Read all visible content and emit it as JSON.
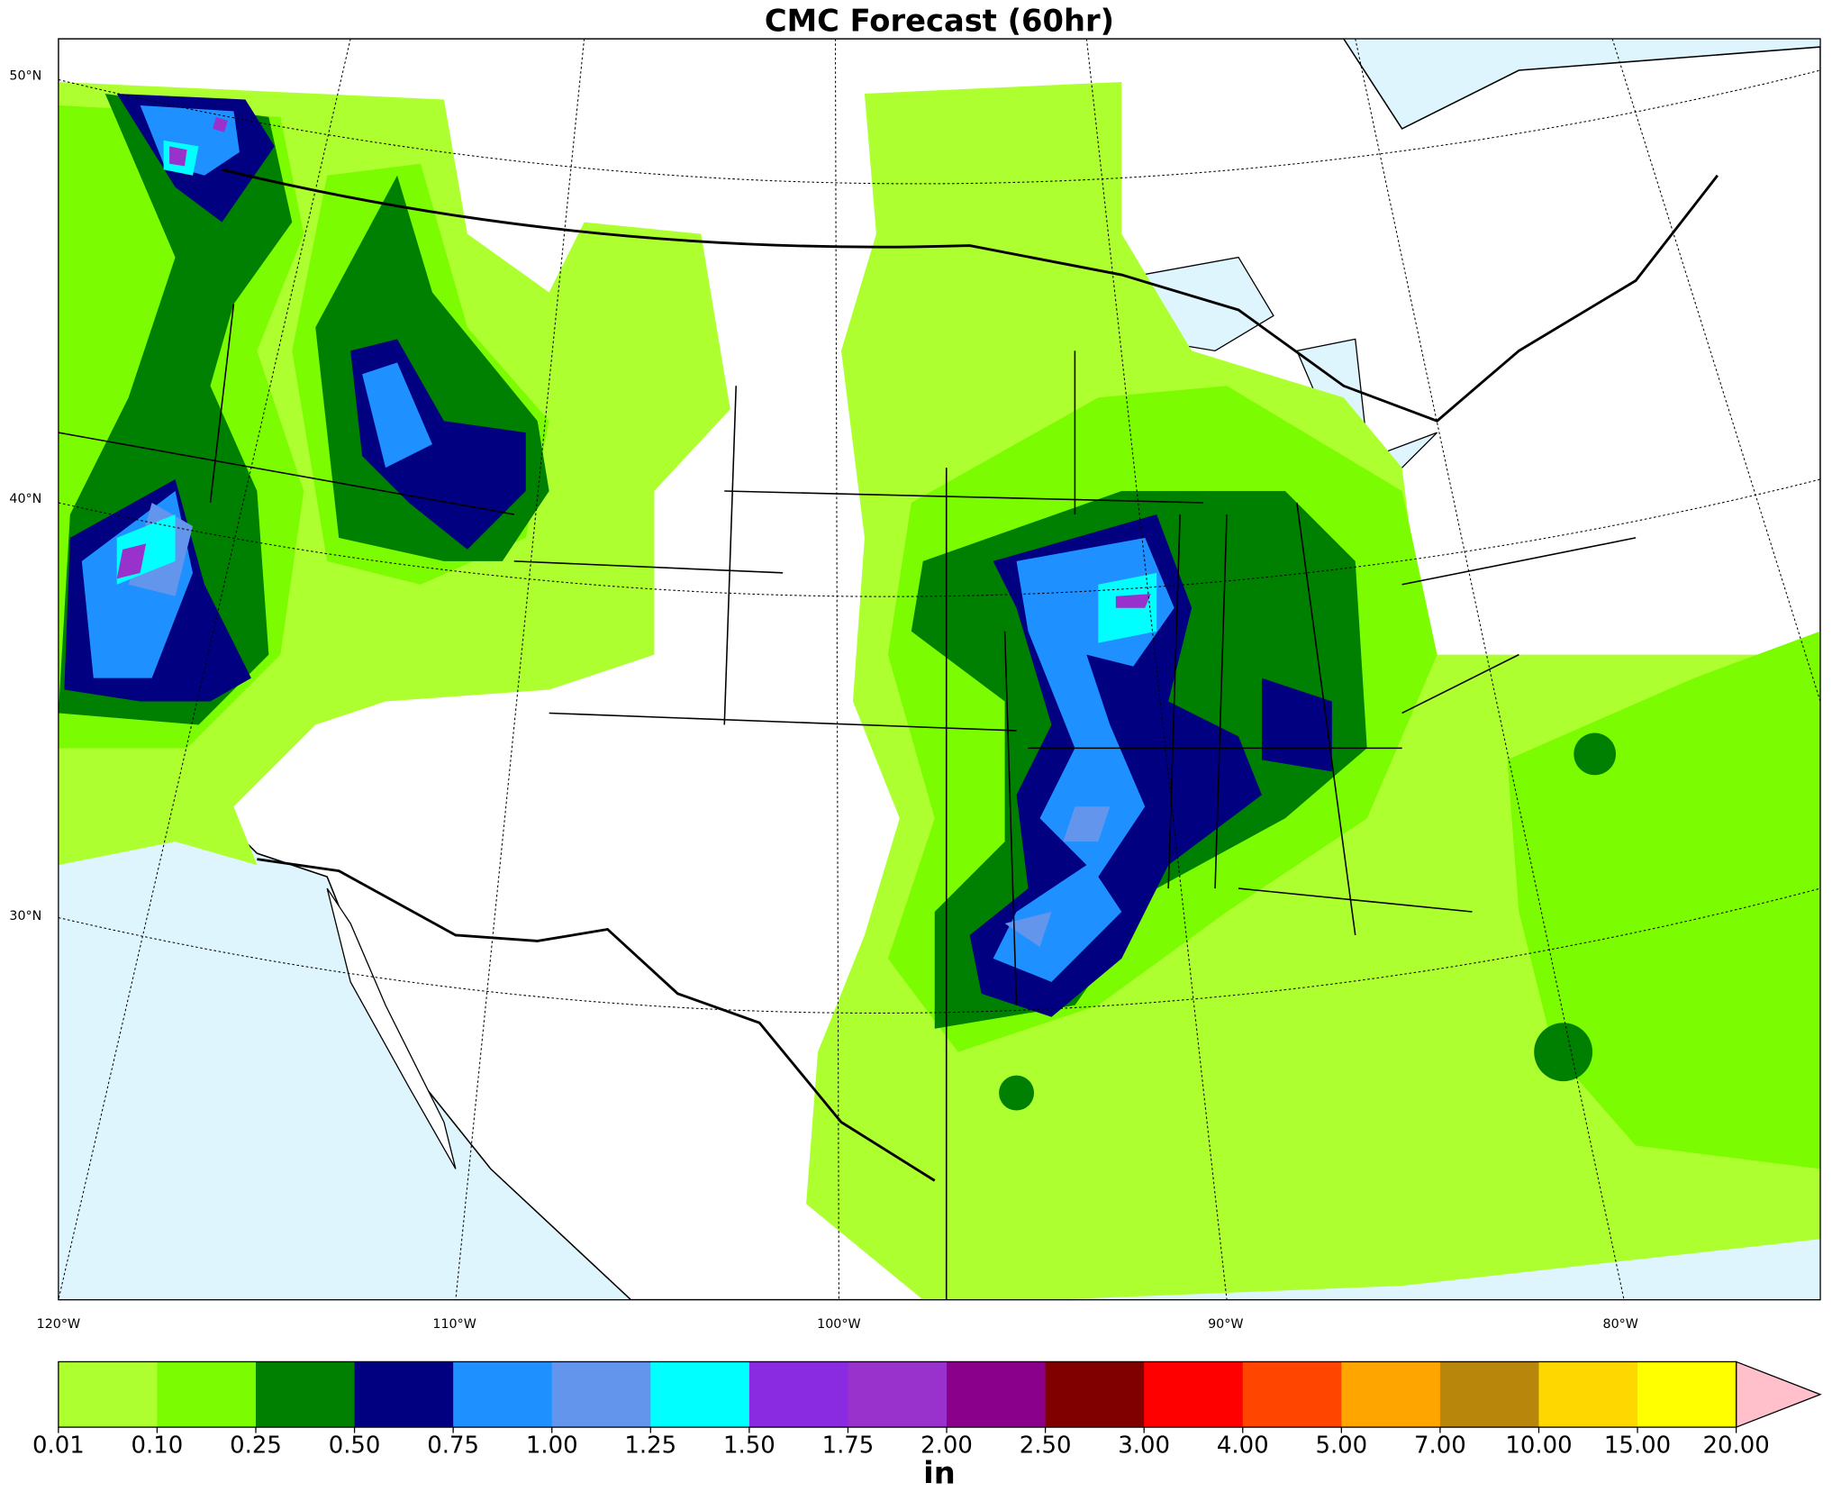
{
  "title": "CMC Forecast (60hr)",
  "map": {
    "lat_labels": [
      "50°N",
      "40°N",
      "30°N"
    ],
    "lon_labels": [
      "120°W",
      "110°W",
      "100°W",
      "90°W",
      "80°W"
    ]
  },
  "colorbar": {
    "label": "in",
    "colors": [
      "#adff2f",
      "#7cfc00",
      "#008000",
      "#000080",
      "#1e90ff",
      "#6495ed",
      "#00ffff",
      "#8a2be2",
      "#9932cc",
      "#8b008b",
      "#800000",
      "#ff0000",
      "#ff4500",
      "#ffa500",
      "#b8860b",
      "#ffd700",
      "#ffff00"
    ],
    "extend_color": "#ffc0cb",
    "ticks": [
      0.01,
      {
        "value": 0.1,
        "label": "0.10"
      },
      {
        "value": 0.25,
        "label": "0.25"
      },
      {
        "value": 0.5,
        "label": "0.50"
      },
      {
        "value": 0.75,
        "label": "0.75"
      },
      {
        "value": 1,
        "label": "1.00"
      },
      {
        "value": 1.25,
        "label": "1.25"
      },
      {
        "value": 1.5,
        "label": "1.50"
      },
      {
        "value": 1.75,
        "label": "1.75"
      },
      {
        "value": 2,
        "label": "2.00"
      },
      {
        "value": 2.5,
        "label": "2.50"
      },
      {
        "value": 3,
        "label": "3.00"
      },
      {
        "value": 4,
        "label": "4.00"
      },
      {
        "value": 5,
        "label": "5.00"
      },
      {
        "value": 7,
        "label": "7.00"
      },
      {
        "value": 10,
        "label": "10.00"
      },
      {
        "value": 15,
        "label": "15.00"
      },
      {
        "value": 20,
        "label": "20.00"
      }
    ]
  }
}
